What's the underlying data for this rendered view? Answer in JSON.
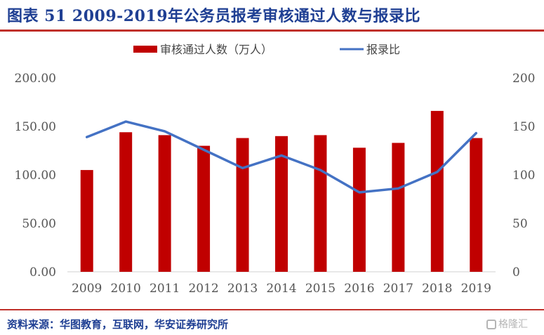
{
  "header": {
    "title": "图表 51  2009-2019年公务员报考审核通过人数与报录比"
  },
  "footer": {
    "source": "资料来源：华图教育，互联网，华安证券研究所",
    "watermark": "格隆汇"
  },
  "colors": {
    "bar": "#c00000",
    "line": "#4472c4",
    "title": "#1f3f93",
    "rule": "#c0302b"
  },
  "chart_data": {
    "type": "bar",
    "categories": [
      "2009",
      "2010",
      "2011",
      "2012",
      "2013",
      "2014",
      "2015",
      "2016",
      "2017",
      "2018",
      "2019"
    ],
    "series": [
      {
        "name": "审核通过人数（万人）",
        "type": "bar",
        "axis": "left",
        "values": [
          105,
          144,
          141,
          130,
          138,
          140,
          141,
          128,
          133,
          166,
          138
        ]
      },
      {
        "name": "报录比",
        "type": "line",
        "axis": "right",
        "values": [
          139,
          155,
          145,
          126,
          107,
          120,
          105,
          82,
          86,
          103,
          143
        ]
      }
    ],
    "y_left": {
      "min": 0,
      "max": 200,
      "ticks": [
        "0.00",
        "50.00",
        "100.00",
        "150.00",
        "200.00"
      ]
    },
    "y_right": {
      "min": 0,
      "max": 200,
      "ticks": [
        "0",
        "50",
        "100",
        "150",
        "200"
      ]
    },
    "legend_position": "top-center",
    "grid": false
  }
}
